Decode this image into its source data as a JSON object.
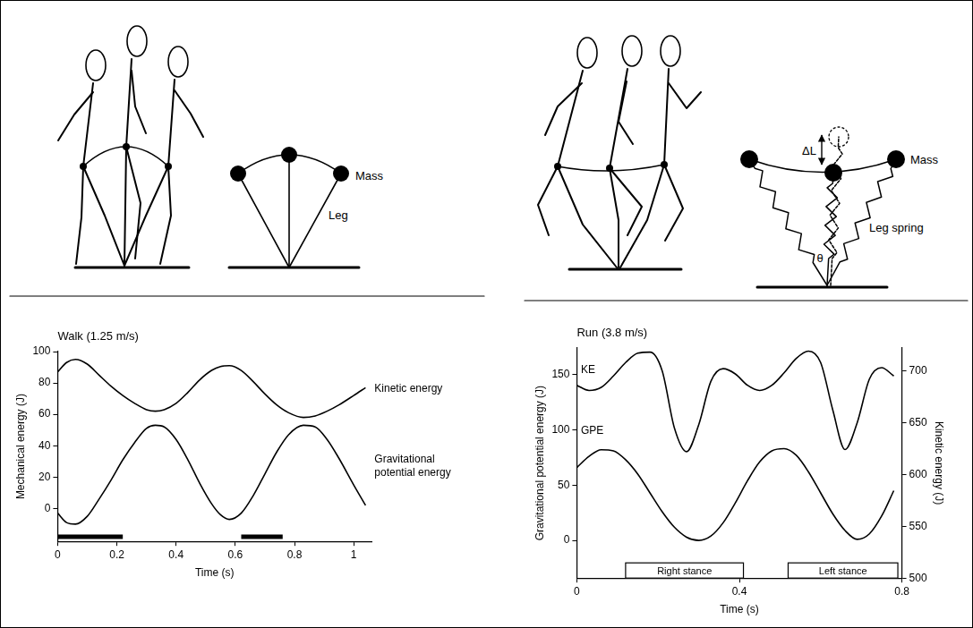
{
  "diagrams": [
    {
      "labels": {
        "mass": "Mass",
        "leg": "Leg"
      }
    },
    {
      "labels": {
        "mass": "Mass",
        "delta_length": "ΔL",
        "leg_spring": "Leg spring",
        "angle": "θ"
      }
    }
  ],
  "chart_data": [
    {
      "type": "line",
      "title": "Walk (1.25 m/s)",
      "x_label": "Time (s)",
      "y_label": "Mechanical energy (J)",
      "xlim": [
        0,
        1.06
      ],
      "xticks": [
        0,
        0.2,
        0.4,
        0.6,
        0.8,
        1
      ],
      "ylim": [
        -21,
        100
      ],
      "yticks": [
        0,
        20,
        40,
        60,
        80,
        100
      ],
      "grid": false,
      "x": [
        0,
        0.03,
        0.06,
        0.1,
        0.14,
        0.18,
        0.22,
        0.26,
        0.3,
        0.33,
        0.36,
        0.4,
        0.44,
        0.48,
        0.52,
        0.55,
        0.58,
        0.62,
        0.66,
        0.7,
        0.74,
        0.78,
        0.83,
        0.87,
        0.91,
        0.95,
        1,
        1.04
      ],
      "series": [
        {
          "name": "Kinetic energy",
          "color": "#000000",
          "values": [
            87,
            93,
            95,
            92,
            85,
            78,
            72,
            67,
            63,
            62,
            63,
            67,
            74,
            82,
            88,
            90.5,
            91,
            88,
            81,
            73,
            66,
            61,
            58,
            59,
            62,
            66,
            72,
            77
          ]
        },
        {
          "name": "Gravitational potential energy",
          "color": "#000000",
          "values": [
            -3,
            -9,
            -10,
            -5,
            6,
            18,
            31,
            42,
            51,
            53,
            52,
            44,
            31,
            16,
            3,
            -4,
            -7,
            -3,
            8,
            22,
            36,
            47,
            53,
            52,
            44,
            32,
            15,
            2
          ]
        }
      ],
      "annotations": [
        {
          "text": "Kinetic energy",
          "x": 1.07,
          "y": 76
        },
        {
          "text": "Gravitational potential energy",
          "x": 1.07,
          "y": 27
        }
      ],
      "intervals": [
        {
          "start": 0,
          "end": 0.22,
          "y": -18
        },
        {
          "start": 0.62,
          "end": 0.76,
          "y": -18
        }
      ]
    },
    {
      "type": "line",
      "title": "Run (3.8 m/s)",
      "x_label": "Time (s)",
      "y_label": "Gravitational potential energy (J)",
      "y2_label": "Kinetic energy (J)",
      "xlim": [
        0,
        0.8
      ],
      "xticks": [
        0,
        0.4,
        0.8
      ],
      "ylim": [
        -34,
        174
      ],
      "yticks": [
        0,
        50,
        100,
        150
      ],
      "y2lim": [
        500,
        722
      ],
      "y2ticks": [
        500,
        550,
        600,
        650,
        700
      ],
      "grid": false,
      "x": [
        0,
        0.03,
        0.06,
        0.09,
        0.12,
        0.15,
        0.18,
        0.21,
        0.24,
        0.27,
        0.3,
        0.33,
        0.36,
        0.39,
        0.42,
        0.45,
        0.48,
        0.51,
        0.54,
        0.57,
        0.6,
        0.63,
        0.66,
        0.69,
        0.72,
        0.75,
        0.78
      ],
      "series": [
        {
          "name": "KE",
          "color": "#000000",
          "axis": "y2",
          "values": [
            686,
            681,
            684,
            695,
            708,
            717,
            718,
            700,
            645,
            622,
            648,
            690,
            702,
            697,
            686,
            681,
            686,
            698,
            712,
            719,
            708,
            662,
            624,
            650,
            692,
            703,
            695
          ]
        },
        {
          "name": "GPE",
          "color": "#000000",
          "values": [
            66,
            76,
            82,
            81,
            73,
            60,
            43,
            26,
            12,
            3,
            0,
            4,
            16,
            34,
            54,
            71,
            81,
            83,
            77,
            62,
            43,
            24,
            9,
            1,
            6,
            22,
            45
          ]
        }
      ],
      "annotations": [
        {
          "text": "KE",
          "x": 0.01,
          "y": 701,
          "axis": "y2"
        },
        {
          "text": "GPE",
          "x": 0.01,
          "y": 99
        }
      ],
      "stances": [
        {
          "label": "Right stance",
          "start": 0.12,
          "end": 0.41
        },
        {
          "label": "Left stance",
          "start": 0.52,
          "end": 0.79
        }
      ]
    }
  ]
}
